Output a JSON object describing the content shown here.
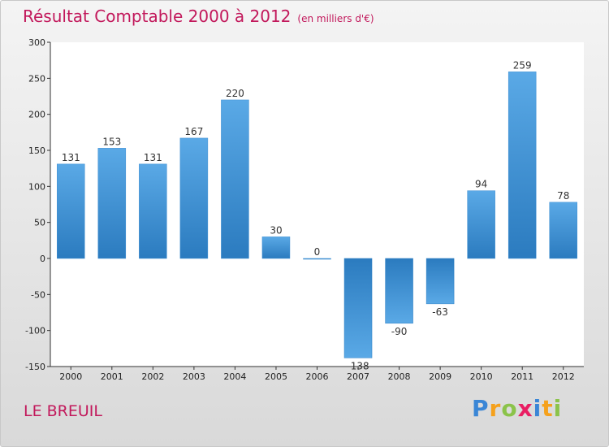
{
  "header": {
    "title": "Résultat Comptable 2000 à 2012",
    "unit": "(en milliers d'€)"
  },
  "footer": {
    "commune": "LE BREUIL",
    "logo_letters": [
      "P",
      "r",
      "o",
      "x",
      "i",
      "t",
      "i"
    ]
  },
  "colors": {
    "title": "#c2185b",
    "bar_top": "#5aa9e6",
    "bar_bottom": "#2b7bbf",
    "logo": [
      "#3a86d6",
      "#f5a11c",
      "#8bc34a",
      "#e91e63",
      "#3a86d6",
      "#f5a11c",
      "#8bc34a"
    ]
  },
  "chart_data": {
    "type": "bar",
    "title": "Résultat Comptable 2000 à 2012",
    "subtitle": "(en milliers d'€)",
    "xlabel": "",
    "ylabel": "",
    "categories": [
      "2000",
      "2001",
      "2002",
      "2003",
      "2004",
      "2005",
      "2006",
      "2007",
      "2008",
      "2009",
      "2010",
      "2011",
      "2012"
    ],
    "values": [
      131,
      153,
      131,
      167,
      220,
      30,
      0,
      -138,
      -90,
      -63,
      94,
      259,
      78
    ],
    "ylim": [
      -150,
      300
    ],
    "yticks": [
      -150,
      -100,
      -50,
      0,
      50,
      100,
      150,
      200,
      250,
      300
    ],
    "grid": false,
    "legend": "none"
  }
}
